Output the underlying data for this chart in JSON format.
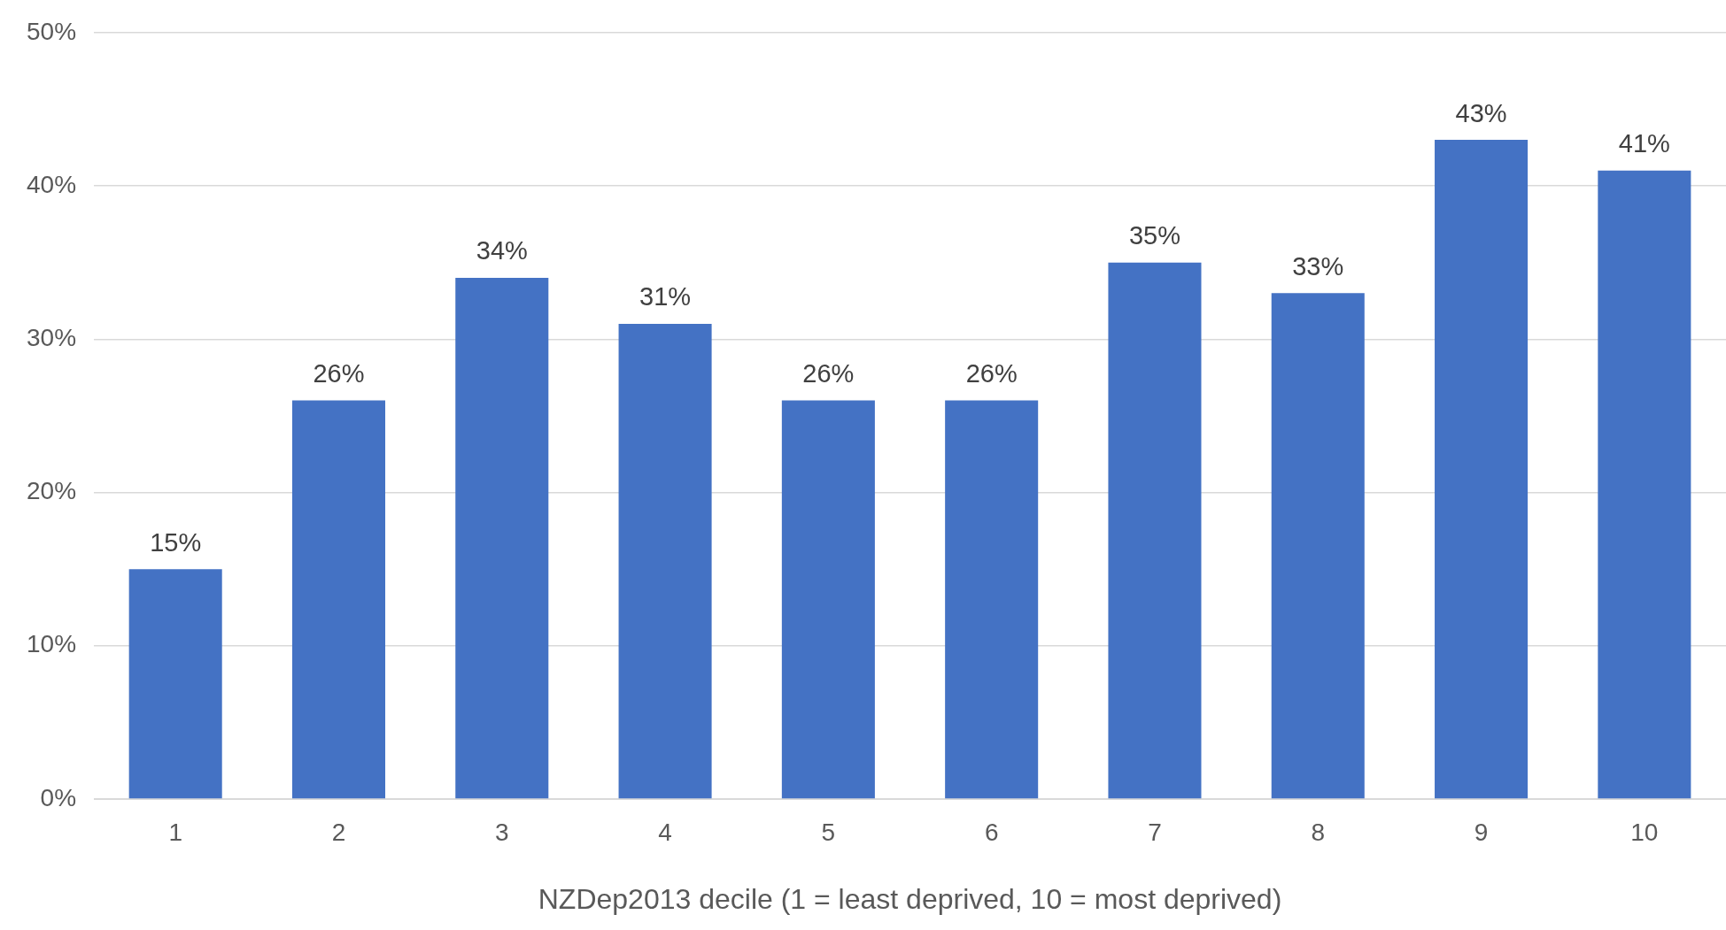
{
  "chart_data": {
    "type": "bar",
    "xlabel": "NZDep2013 decile (1 = least deprived, 10 = most deprived)",
    "categories": [
      "1",
      "2",
      "3",
      "4",
      "5",
      "6",
      "7",
      "8",
      "9",
      "10"
    ],
    "values": [
      15,
      26,
      34,
      31,
      26,
      26,
      35,
      33,
      43,
      41
    ],
    "value_labels": [
      "15%",
      "26%",
      "34%",
      "31%",
      "26%",
      "26%",
      "35%",
      "33%",
      "43%",
      "41%"
    ],
    "color": "#4472c4",
    "ylim": [
      0,
      50
    ],
    "yticks": [
      {
        "value": 0,
        "label": "0%"
      },
      {
        "value": 10,
        "label": "10%"
      },
      {
        "value": 20,
        "label": "20%"
      },
      {
        "value": 30,
        "label": "30%"
      },
      {
        "value": 40,
        "label": "40%"
      },
      {
        "value": 50,
        "label": "50%"
      }
    ],
    "grid": "y",
    "legend": false
  }
}
